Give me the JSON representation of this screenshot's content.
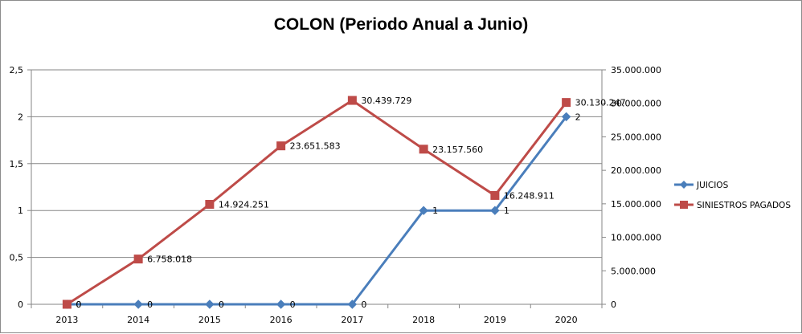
{
  "chart_data": {
    "type": "line",
    "title": "COLON (Periodo Anual a Junio)",
    "categories": [
      "2013",
      "2014",
      "2015",
      "2016",
      "2017",
      "2018",
      "2019",
      "2020"
    ],
    "y_left": {
      "ylim": [
        0,
        2.5
      ],
      "ticks": [
        0,
        0.5,
        1,
        1.5,
        2,
        2.5
      ],
      "tick_labels": [
        "0",
        "0,5",
        "1",
        "1,5",
        "2",
        "2,5"
      ]
    },
    "y_right": {
      "ylim": [
        0,
        35000000
      ],
      "ticks": [
        0,
        5000000,
        10000000,
        15000000,
        20000000,
        25000000,
        30000000,
        35000000
      ],
      "tick_labels": [
        "0",
        "5.000.000",
        "10.000.000",
        "15.000.000",
        "20.000.000",
        "25.000.000",
        "30.000.000",
        "35.000.000"
      ]
    },
    "series": [
      {
        "name": "JUICIOS",
        "axis": "left",
        "color": "#4a7ebb",
        "marker": "diamond",
        "values": [
          0,
          0,
          0,
          0,
          0,
          1,
          1,
          2
        ],
        "labels": [
          "0",
          "0",
          "0",
          "0",
          "0",
          "1",
          "1",
          "2"
        ]
      },
      {
        "name": "SINIESTROS PAGADOS",
        "axis": "right",
        "color": "#be4b48",
        "marker": "square",
        "values": [
          0,
          6758018,
          14924251,
          23651583,
          30439729,
          23157560,
          16248911,
          30130247
        ],
        "labels": [
          "0",
          "6.758.018",
          "14.924.251",
          "23.651.583",
          "30.439.729",
          "23.157.560",
          "16.248.911",
          "30.130.247"
        ]
      }
    ],
    "grid": "horizontal",
    "legend_position": "right"
  }
}
